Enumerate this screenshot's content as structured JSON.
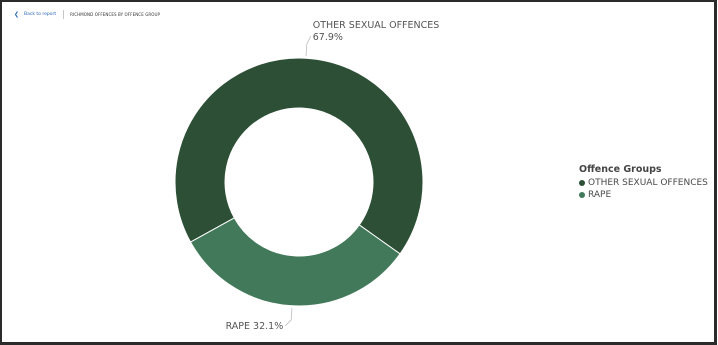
{
  "topbar": {
    "back_label": "Back to report",
    "chart_title": "RICHMOND OFFENCES BY OFFENCE GROUP"
  },
  "legend": {
    "title": "Offence Groups",
    "items": [
      {
        "label": "OTHER SEXUAL OFFENCES",
        "color": "#2c4f36"
      },
      {
        "label": "RAPE",
        "color": "#41795a"
      }
    ]
  },
  "chart_data": {
    "type": "pie",
    "donut": true,
    "title": "RICHMOND OFFENCES BY OFFENCE GROUP",
    "legend_title": "Offence Groups",
    "legend_position": "right",
    "categories": [
      "OTHER SEXUAL OFFENCES",
      "RAPE"
    ],
    "values": [
      67.9,
      32.1
    ],
    "data_labels": [
      "67.9%",
      "32.1%"
    ],
    "colors": [
      "#2c4f36",
      "#41795a"
    ]
  }
}
